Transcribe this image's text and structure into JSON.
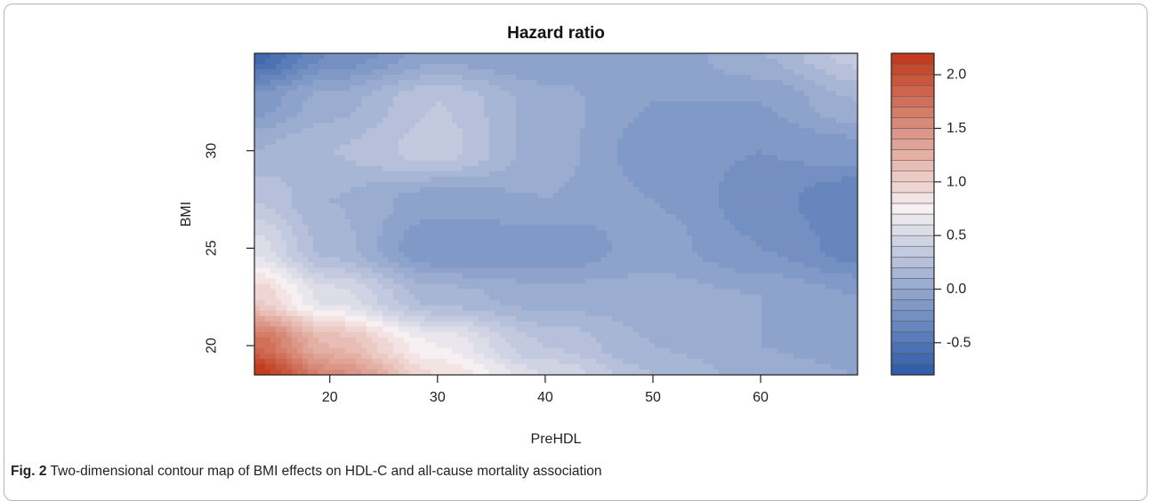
{
  "chart_data": {
    "type": "heatmap",
    "subtype": "filled-contour",
    "title": "Hazard ratio",
    "xlabel": "PreHDL",
    "ylabel": "BMI",
    "xlim": [
      13,
      69
    ],
    "ylim": [
      18.5,
      35
    ],
    "x_ticks": [
      "20",
      "30",
      "40",
      "50",
      "60"
    ],
    "x_tick_values": [
      20,
      30,
      40,
      50,
      60
    ],
    "y_ticks": [
      "20",
      "25",
      "30"
    ],
    "y_tick_values": [
      20,
      25,
      30
    ],
    "colorbar": {
      "min": -0.8,
      "max": 2.2,
      "levels": 30,
      "ticks": [
        "2.0",
        "1.5",
        "1.0",
        "0.5",
        "0.0",
        "-0.5"
      ],
      "tick_values": [
        2.0,
        1.5,
        1.0,
        0.5,
        0.0,
        -0.5
      ],
      "low_color": "#2c5aa8",
      "mid_color": "#f7f0f2",
      "high_color": "#bf3716"
    },
    "grid_x": [
      13,
      20,
      30,
      40,
      50,
      60,
      69
    ],
    "grid_y": [
      18.5,
      20,
      22.5,
      25,
      27.5,
      30,
      32.5,
      35
    ],
    "z": [
      [
        2.2,
        1.55,
        0.9,
        0.5,
        0.2,
        0.05,
        0.0
      ],
      [
        1.8,
        1.2,
        0.7,
        0.3,
        0.1,
        0.0,
        -0.05
      ],
      [
        1.0,
        0.55,
        0.15,
        0.05,
        0.05,
        0.0,
        -0.1
      ],
      [
        0.55,
        0.15,
        -0.2,
        -0.2,
        -0.05,
        -0.2,
        -0.35
      ],
      [
        0.3,
        0.1,
        -0.05,
        0.0,
        -0.1,
        -0.25,
        -0.4
      ],
      [
        0.1,
        0.2,
        0.35,
        0.05,
        -0.15,
        -0.2,
        -0.15
      ],
      [
        -0.15,
        0.05,
        0.3,
        0.05,
        -0.1,
        -0.1,
        0.1
      ],
      [
        -0.65,
        -0.3,
        -0.05,
        -0.1,
        -0.1,
        0.1,
        0.35
      ]
    ]
  },
  "caption": {
    "label": "Fig. 2",
    "text": "Two-dimensional contour map of BMI effects on HDL-C and all-cause mortality association"
  }
}
